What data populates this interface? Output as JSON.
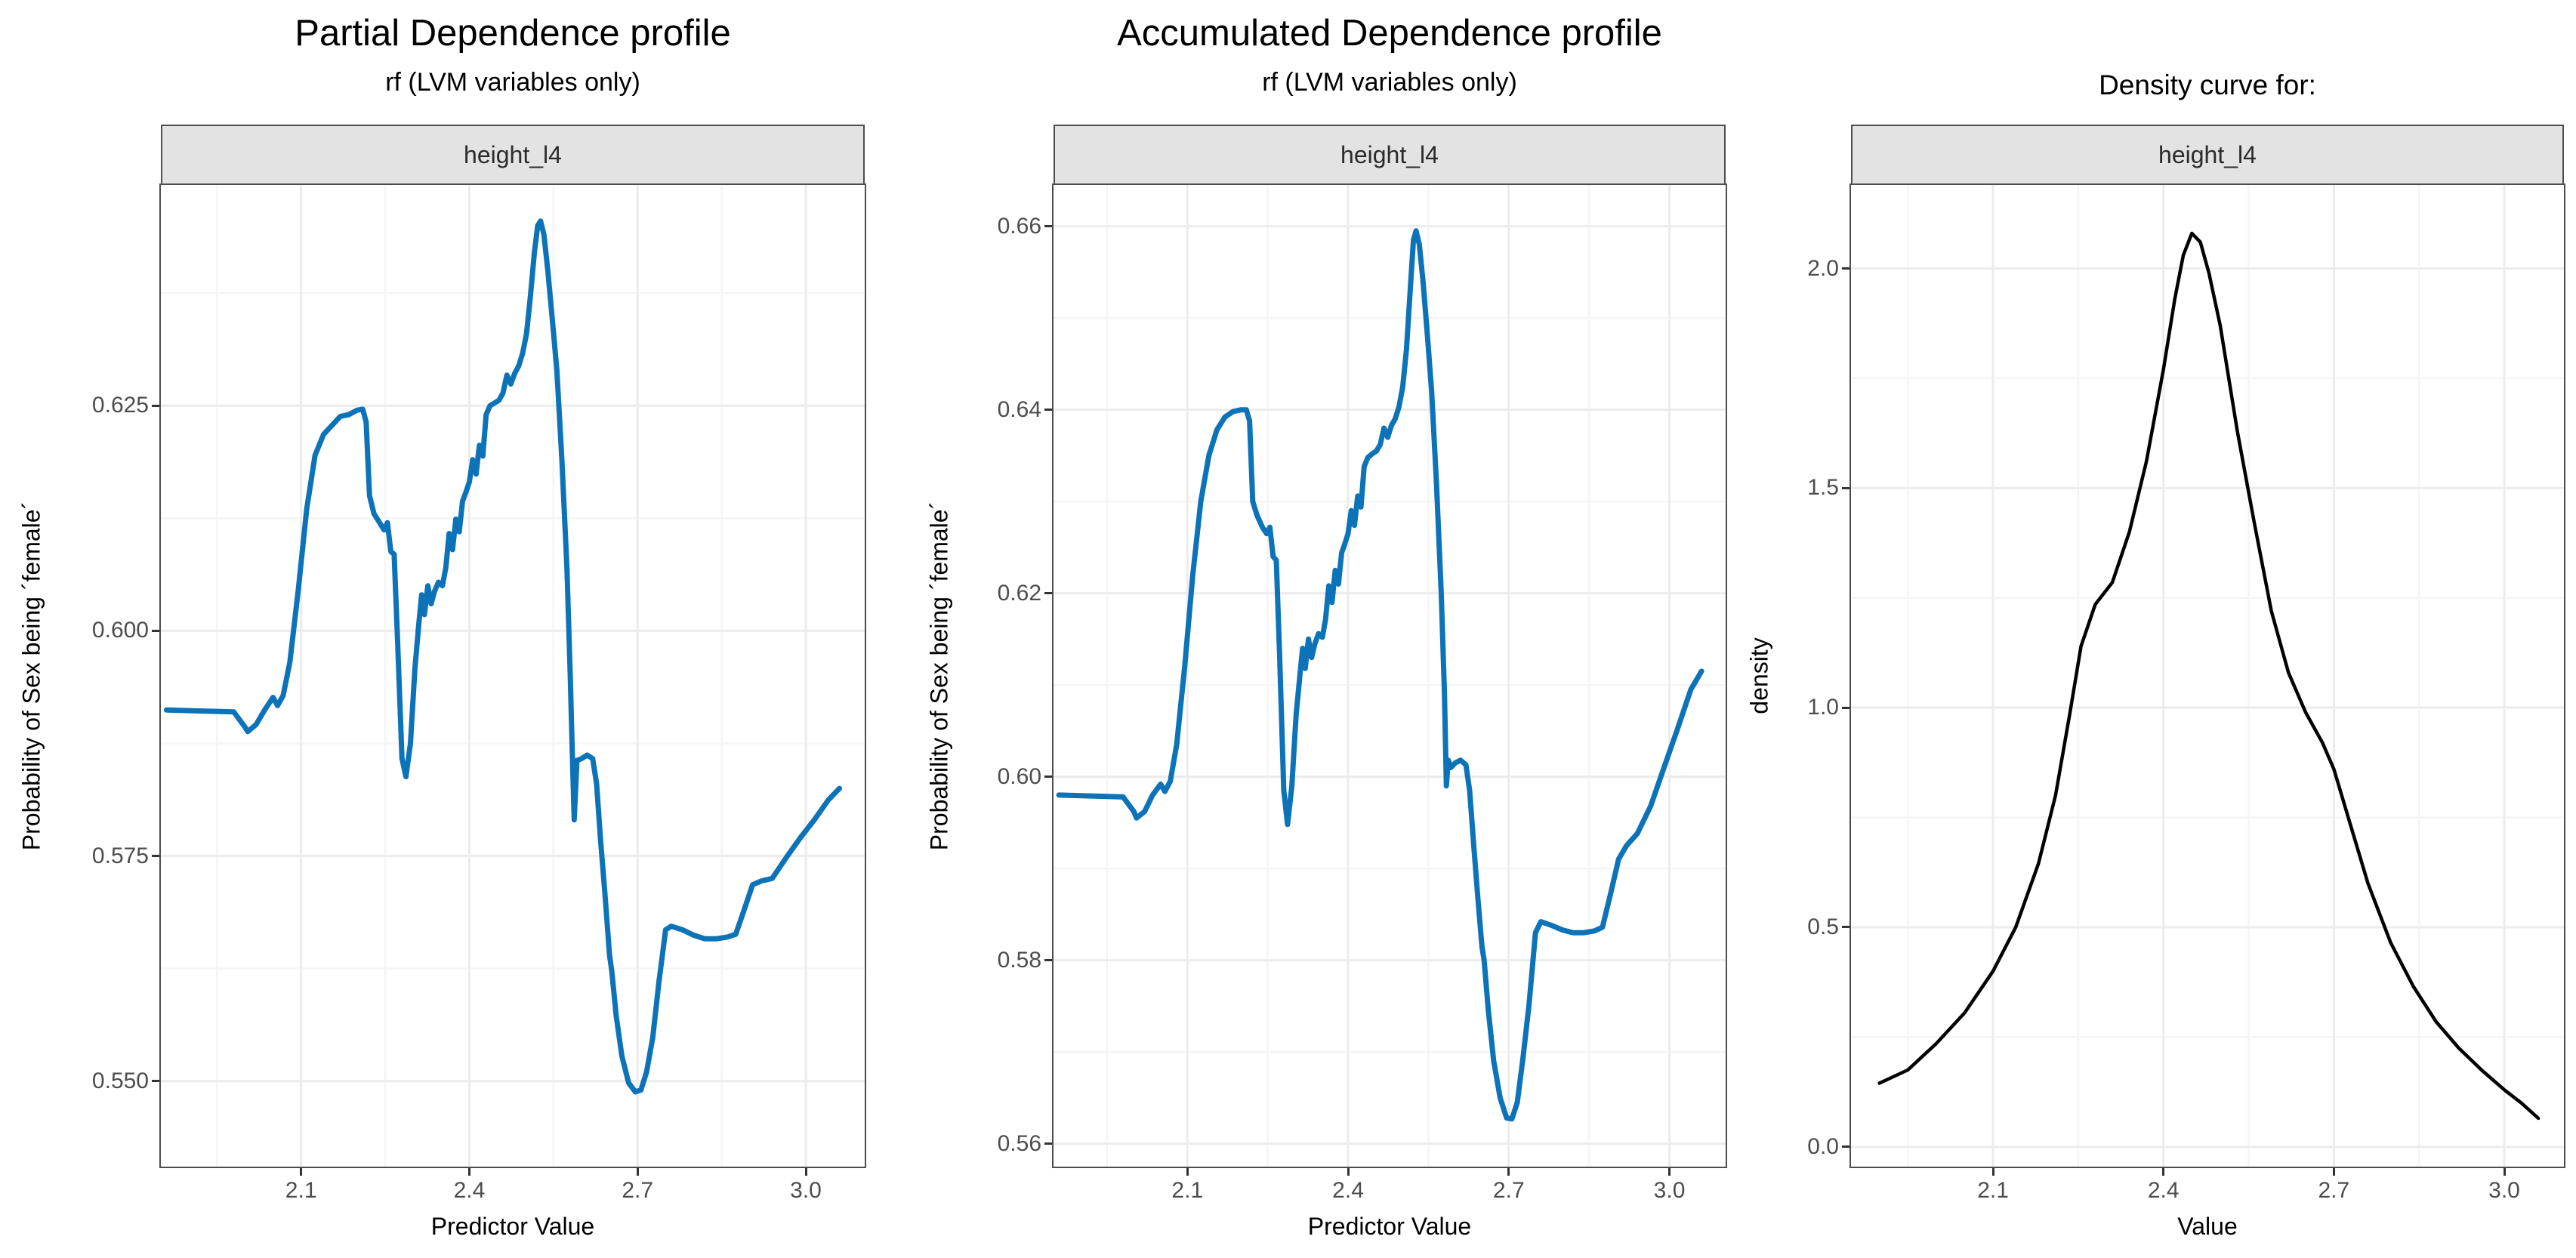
{
  "colors": {
    "background": "#ffffff",
    "line_blue": "#0D73B8",
    "line_black": "#000000",
    "strip_fill": "#E3E3E3",
    "panel_border": "#4D4D4D",
    "grid_major": "#ECECEC",
    "grid_minor": "#F5F5F5",
    "tick_text": "#4D4D4D",
    "tick_mark": "#333333"
  },
  "chart_data": [
    {
      "type": "line",
      "title": "Partial Dependence profile",
      "subtitle": "rf (LVM variables only)",
      "facet": "height_l4",
      "xlabel": "Predictor Value",
      "ylabel": "Probability of Sex being ´female´",
      "legend": "none",
      "grid": true,
      "line_color": "#0D73B8",
      "line_width": 7,
      "xlim": [
        1.85,
        3.105
      ],
      "ylim": [
        0.5405,
        0.6495
      ],
      "xticks": [
        2.1,
        2.4,
        2.7,
        3.0
      ],
      "xtick_labels": [
        "2.1",
        "2.4",
        "2.7",
        "3.0"
      ],
      "xticks_minor": [
        1.95,
        2.25,
        2.55,
        2.85
      ],
      "yticks": [
        0.55,
        0.575,
        0.6,
        0.625
      ],
      "ytick_labels": [
        "0.550",
        "0.575",
        "0.600",
        "0.625"
      ],
      "yticks_minor": [
        0.5625,
        0.5875,
        0.6125,
        0.6375
      ],
      "series": [
        {
          "name": "height_l4",
          "x": [
            1.86,
            1.98,
            2.0,
            2.005,
            2.02,
            2.035,
            2.05,
            2.058,
            2.068,
            2.08,
            2.095,
            2.11,
            2.125,
            2.14,
            2.155,
            2.17,
            2.185,
            2.2,
            2.21,
            2.216,
            2.222,
            2.23,
            2.24,
            2.248,
            2.254,
            2.26,
            2.266,
            2.272,
            2.28,
            2.287,
            2.295,
            2.303,
            2.31,
            2.315,
            2.32,
            2.326,
            2.332,
            2.338,
            2.345,
            2.352,
            2.358,
            2.364,
            2.37,
            2.376,
            2.382,
            2.388,
            2.394,
            2.4,
            2.406,
            2.412,
            2.418,
            2.424,
            2.43,
            2.437,
            2.445,
            2.453,
            2.46,
            2.467,
            2.474,
            2.481,
            2.488,
            2.495,
            2.502,
            2.509,
            2.516,
            2.522,
            2.527,
            2.533,
            2.54,
            2.548,
            2.556,
            2.565,
            2.574,
            2.58,
            2.5835,
            2.587,
            2.592,
            2.6,
            2.61,
            2.62,
            2.627,
            2.634,
            2.642,
            2.65,
            2.654,
            2.662,
            2.672,
            2.684,
            2.696,
            2.706,
            2.716,
            2.727,
            2.738,
            2.75,
            2.76,
            2.78,
            2.8,
            2.82,
            2.84,
            2.86,
            2.875,
            2.89,
            2.905,
            2.92,
            2.94,
            2.965,
            2.99,
            3.015,
            3.04,
            3.06
          ],
          "y": [
            0.5912,
            0.591,
            0.5893,
            0.5888,
            0.5896,
            0.5912,
            0.5926,
            0.5917,
            0.5928,
            0.5965,
            0.6045,
            0.6135,
            0.6195,
            0.6218,
            0.6228,
            0.6238,
            0.624,
            0.6245,
            0.6246,
            0.6232,
            0.615,
            0.613,
            0.612,
            0.6112,
            0.612,
            0.6088,
            0.6085,
            0.599,
            0.5858,
            0.5838,
            0.5875,
            0.5958,
            0.6008,
            0.604,
            0.6018,
            0.605,
            0.603,
            0.6044,
            0.6054,
            0.605,
            0.607,
            0.6108,
            0.609,
            0.6124,
            0.611,
            0.6144,
            0.6154,
            0.6165,
            0.619,
            0.6174,
            0.6206,
            0.6194,
            0.624,
            0.625,
            0.6253,
            0.6256,
            0.6264,
            0.6284,
            0.6274,
            0.6286,
            0.6294,
            0.6308,
            0.633,
            0.6372,
            0.642,
            0.645,
            0.6455,
            0.644,
            0.64,
            0.6345,
            0.629,
            0.619,
            0.607,
            0.595,
            0.5868,
            0.579,
            0.5856,
            0.5858,
            0.5862,
            0.5858,
            0.583,
            0.5768,
            0.5706,
            0.564,
            0.5622,
            0.5572,
            0.5528,
            0.5498,
            0.5488,
            0.549,
            0.551,
            0.5548,
            0.561,
            0.5668,
            0.5672,
            0.5668,
            0.5662,
            0.5658,
            0.5658,
            0.566,
            0.5663,
            0.569,
            0.5718,
            0.5722,
            0.5725,
            0.5748,
            0.577,
            0.579,
            0.5812,
            0.5825
          ]
        }
      ]
    },
    {
      "type": "line",
      "title": "Accumulated Dependence profile",
      "subtitle": "rf (LVM variables only)",
      "facet": "height_l4",
      "xlabel": "Predictor Value",
      "ylabel": "Probability of Sex being ´female´",
      "legend": "none",
      "grid": true,
      "line_color": "#0D73B8",
      "line_width": 7,
      "xlim": [
        1.85,
        3.105
      ],
      "ylim": [
        0.5575,
        0.6645
      ],
      "xticks": [
        2.1,
        2.4,
        2.7,
        3.0
      ],
      "xtick_labels": [
        "2.1",
        "2.4",
        "2.7",
        "3.0"
      ],
      "xticks_minor": [
        1.95,
        2.25,
        2.55,
        2.85
      ],
      "yticks": [
        0.56,
        0.58,
        0.6,
        0.62,
        0.64,
        0.66
      ],
      "ytick_labels": [
        "0.56",
        "0.58",
        "0.60",
        "0.62",
        "0.64",
        "0.66"
      ],
      "yticks_minor": [
        0.57,
        0.59,
        0.61,
        0.63,
        0.65
      ],
      "series": [
        {
          "name": "height_l4",
          "x": [
            1.86,
            1.98,
            2.0,
            2.005,
            2.02,
            2.035,
            2.05,
            2.058,
            2.068,
            2.08,
            2.095,
            2.11,
            2.125,
            2.14,
            2.155,
            2.17,
            2.185,
            2.2,
            2.21,
            2.216,
            2.222,
            2.23,
            2.24,
            2.248,
            2.254,
            2.26,
            2.266,
            2.272,
            2.28,
            2.287,
            2.295,
            2.303,
            2.31,
            2.315,
            2.32,
            2.326,
            2.332,
            2.338,
            2.345,
            2.352,
            2.358,
            2.364,
            2.37,
            2.376,
            2.382,
            2.388,
            2.394,
            2.4,
            2.406,
            2.412,
            2.418,
            2.424,
            2.43,
            2.437,
            2.445,
            2.453,
            2.46,
            2.467,
            2.474,
            2.481,
            2.488,
            2.495,
            2.502,
            2.509,
            2.516,
            2.522,
            2.527,
            2.533,
            2.54,
            2.548,
            2.556,
            2.565,
            2.574,
            2.58,
            2.5835,
            2.587,
            2.592,
            2.6,
            2.61,
            2.62,
            2.627,
            2.634,
            2.642,
            2.65,
            2.654,
            2.662,
            2.672,
            2.684,
            2.696,
            2.706,
            2.716,
            2.727,
            2.738,
            2.75,
            2.76,
            2.78,
            2.8,
            2.82,
            2.84,
            2.86,
            2.875,
            2.89,
            2.905,
            2.92,
            2.94,
            2.965,
            2.99,
            3.015,
            3.04,
            3.06
          ],
          "y": [
            0.598,
            0.5978,
            0.5962,
            0.5955,
            0.5962,
            0.598,
            0.5992,
            0.5984,
            0.5995,
            0.6035,
            0.612,
            0.622,
            0.63,
            0.635,
            0.6378,
            0.6392,
            0.6398,
            0.64,
            0.64,
            0.6388,
            0.63,
            0.6285,
            0.6272,
            0.6265,
            0.6272,
            0.624,
            0.6236,
            0.6135,
            0.5985,
            0.5948,
            0.599,
            0.6068,
            0.611,
            0.614,
            0.6118,
            0.615,
            0.613,
            0.6145,
            0.6156,
            0.6152,
            0.6172,
            0.6208,
            0.619,
            0.6225,
            0.621,
            0.6244,
            0.6254,
            0.6265,
            0.629,
            0.6274,
            0.6306,
            0.6294,
            0.6338,
            0.6348,
            0.6352,
            0.6355,
            0.6362,
            0.638,
            0.637,
            0.6383,
            0.639,
            0.6403,
            0.6425,
            0.6465,
            0.653,
            0.6585,
            0.6595,
            0.658,
            0.654,
            0.6482,
            0.642,
            0.632,
            0.62,
            0.609,
            0.599,
            0.6018,
            0.601,
            0.6015,
            0.6018,
            0.6013,
            0.5985,
            0.593,
            0.587,
            0.5815,
            0.58,
            0.5745,
            0.569,
            0.565,
            0.5628,
            0.5627,
            0.5645,
            0.5695,
            0.5752,
            0.583,
            0.5842,
            0.5838,
            0.5833,
            0.583,
            0.583,
            0.5832,
            0.5836,
            0.5872,
            0.591,
            0.5925,
            0.5938,
            0.5968,
            0.601,
            0.6052,
            0.6095,
            0.6115
          ]
        }
      ]
    },
    {
      "type": "line",
      "title": "Density curve for:",
      "subtitle": "",
      "facet": "height_l4",
      "xlabel": "Value",
      "ylabel": "density",
      "legend": "none",
      "grid": true,
      "line_color": "#000000",
      "line_width": 4.5,
      "xlim": [
        1.85,
        3.105
      ],
      "ylim": [
        -0.045,
        2.19
      ],
      "xticks": [
        2.1,
        2.4,
        2.7,
        3.0
      ],
      "xtick_labels": [
        "2.1",
        "2.4",
        "2.7",
        "3.0"
      ],
      "xticks_minor": [
        1.95,
        2.25,
        2.55,
        2.85
      ],
      "yticks": [
        0.0,
        0.5,
        1.0,
        1.5,
        2.0
      ],
      "ytick_labels": [
        "0.0",
        "0.5",
        "1.0",
        "1.5",
        "2.0"
      ],
      "yticks_minor": [
        0.25,
        0.75,
        1.25,
        1.75
      ],
      "series": [
        {
          "name": "height_l4",
          "x": [
            1.9,
            1.95,
            2.0,
            2.05,
            2.1,
            2.14,
            2.18,
            2.21,
            2.235,
            2.255,
            2.28,
            2.31,
            2.34,
            2.37,
            2.4,
            2.42,
            2.435,
            2.45,
            2.465,
            2.48,
            2.5,
            2.53,
            2.56,
            2.59,
            2.62,
            2.65,
            2.68,
            2.7,
            2.73,
            2.76,
            2.8,
            2.84,
            2.88,
            2.92,
            2.96,
            3.0,
            3.03,
            3.06
          ],
          "y": [
            0.145,
            0.175,
            0.235,
            0.305,
            0.4,
            0.5,
            0.645,
            0.8,
            0.985,
            1.14,
            1.235,
            1.285,
            1.4,
            1.56,
            1.77,
            1.93,
            2.03,
            2.08,
            2.06,
            1.99,
            1.87,
            1.63,
            1.42,
            1.22,
            1.08,
            0.99,
            0.92,
            0.86,
            0.73,
            0.6,
            0.465,
            0.365,
            0.285,
            0.225,
            0.175,
            0.13,
            0.1,
            0.065
          ]
        }
      ]
    }
  ]
}
